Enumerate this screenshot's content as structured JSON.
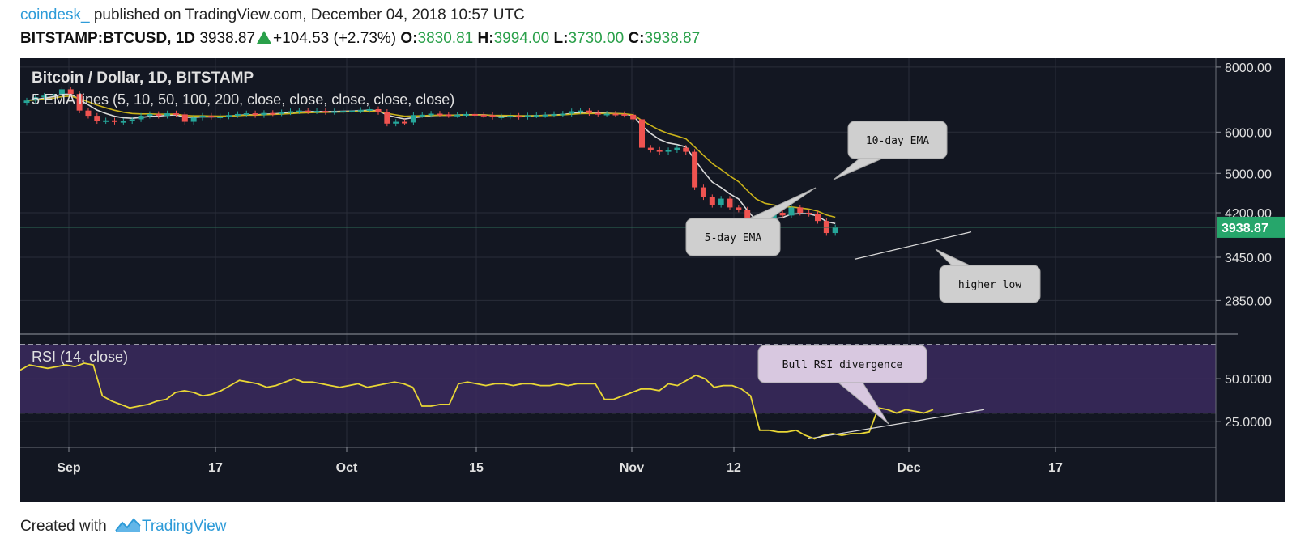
{
  "header": {
    "author": "coindesk_",
    "published": " published on TradingView.com, December 04, 2018 10:57 UTC",
    "symbol": "BITSTAMP:BTCUSD, 1D",
    "last": "3938.87",
    "change": "+104.53 (+2.73%)",
    "o_label": "O:",
    "o_value": "3830.81",
    "h_label": "H:",
    "h_value": "3994.00",
    "l_label": "L:",
    "l_value": "3730.00",
    "c_label": "C:",
    "c_value": "3938.87"
  },
  "footer": {
    "created_with": "Created with",
    "brand": "TradingView"
  },
  "colors": {
    "background": "#131722",
    "grid": "#2a2e39",
    "candle_up": "#26a69a",
    "candle_down": "#ef5350",
    "ema5": "#d9d9d9",
    "ema10": "#c9b21a",
    "rsi": "#e9d735",
    "rsi_band": "#3b2a5e",
    "price_label": "#26a66b",
    "callout_gray": "#cfcfcf",
    "callout_purple": "#d8c8e0"
  },
  "chart_data": [
    {
      "type": "candlestick",
      "title": "Bitcoin / Dollar, 1D, BITSTAMP",
      "subtitle": "5 EMA lines (5, 10, 50, 100, 200, close, close, close, close, close)",
      "x_ticks": [
        "Sep",
        "17",
        "Oct",
        "15",
        "Nov",
        "12",
        "Dec",
        "17"
      ],
      "y_ticks": [
        "8000.00",
        "6000.00",
        "5000.00",
        "4200.00",
        "3450.00",
        "2850.00"
      ],
      "y_scale": "log",
      "ylim": [
        2500,
        8200
      ],
      "last_price_label": "3938.87",
      "ohlc_close": [
        6900,
        7000,
        7050,
        7100,
        7250,
        7100,
        6600,
        6450,
        6300,
        6320,
        6280,
        6300,
        6350,
        6450,
        6500,
        6450,
        6520,
        6490,
        6280,
        6400,
        6450,
        6420,
        6430,
        6470,
        6500,
        6520,
        6470,
        6530,
        6520,
        6550,
        6580,
        6600,
        6580,
        6590,
        6560,
        6580,
        6590,
        6600,
        6620,
        6640,
        6560,
        6230,
        6280,
        6260,
        6470,
        6480,
        6510,
        6490,
        6470,
        6480,
        6500,
        6480,
        6470,
        6420,
        6430,
        6450,
        6420,
        6460,
        6470,
        6480,
        6500,
        6510,
        6580,
        6600,
        6530,
        6510,
        6510,
        6500,
        6480,
        6350,
        5600,
        5550,
        5500,
        5540,
        5600,
        5500,
        4700,
        4500,
        4350,
        4470,
        4300,
        4260,
        3800,
        3700,
        4000,
        4200,
        4150,
        4300,
        4200,
        4180,
        4050,
        3840,
        3938.87
      ],
      "annotations": [
        "10-day EMA",
        "5-day EMA",
        "higher low"
      ],
      "series": [
        {
          "name": "5-day EMA"
        },
        {
          "name": "10-day EMA"
        }
      ]
    },
    {
      "type": "line",
      "title": "RSI (14, close)",
      "y_ticks": [
        "50.0000",
        "25.0000"
      ],
      "ylim": [
        10,
        75
      ],
      "band": [
        30,
        70
      ],
      "values": [
        55,
        58,
        57,
        56,
        57,
        58,
        57,
        59,
        58,
        40,
        37,
        35,
        33,
        34,
        35,
        37,
        38,
        42,
        43,
        42,
        40,
        41,
        43,
        46,
        49,
        48,
        47,
        45,
        46,
        48,
        50,
        48,
        48,
        47,
        46,
        45,
        46,
        47,
        45,
        46,
        47,
        48,
        47,
        45,
        34,
        34,
        35,
        35,
        47,
        48,
        47,
        46,
        47,
        47,
        46,
        47,
        47,
        46,
        46,
        47,
        46,
        47,
        47,
        47,
        38,
        38,
        40,
        42,
        44,
        44,
        43,
        47,
        46,
        49,
        52,
        50,
        45,
        46,
        46,
        44,
        40,
        20,
        20,
        19,
        19,
        20,
        17,
        15,
        17,
        18,
        17,
        18,
        18,
        19,
        33,
        32,
        30,
        32,
        31,
        30,
        32
      ],
      "annotations": [
        "Bull RSI divergence"
      ]
    }
  ]
}
